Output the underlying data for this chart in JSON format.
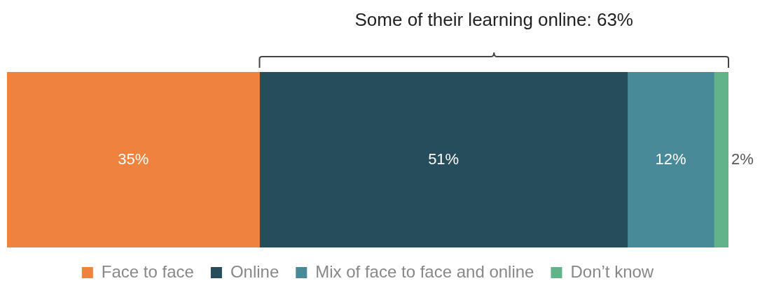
{
  "chart_data": {
    "type": "bar",
    "orientation": "horizontal",
    "stacked": true,
    "categories": [
      null
    ],
    "series": [
      {
        "name": "Face to face",
        "color": "#ee823e",
        "values": [
          35
        ],
        "value_labels": [
          "35%"
        ]
      },
      {
        "name": "Online",
        "color": "#264d5c",
        "values": [
          51
        ],
        "value_labels": [
          "51%"
        ]
      },
      {
        "name": "Mix of face to face and online",
        "color": "#498a99",
        "values": [
          12
        ],
        "value_labels": [
          "12%"
        ]
      },
      {
        "name": "Don’t know",
        "color": "#63b38a",
        "values": [
          2
        ],
        "value_labels": [
          "2%"
        ]
      }
    ],
    "legend": "bottom",
    "annotations": [
      "Some of their learning online: 63%"
    ]
  }
}
